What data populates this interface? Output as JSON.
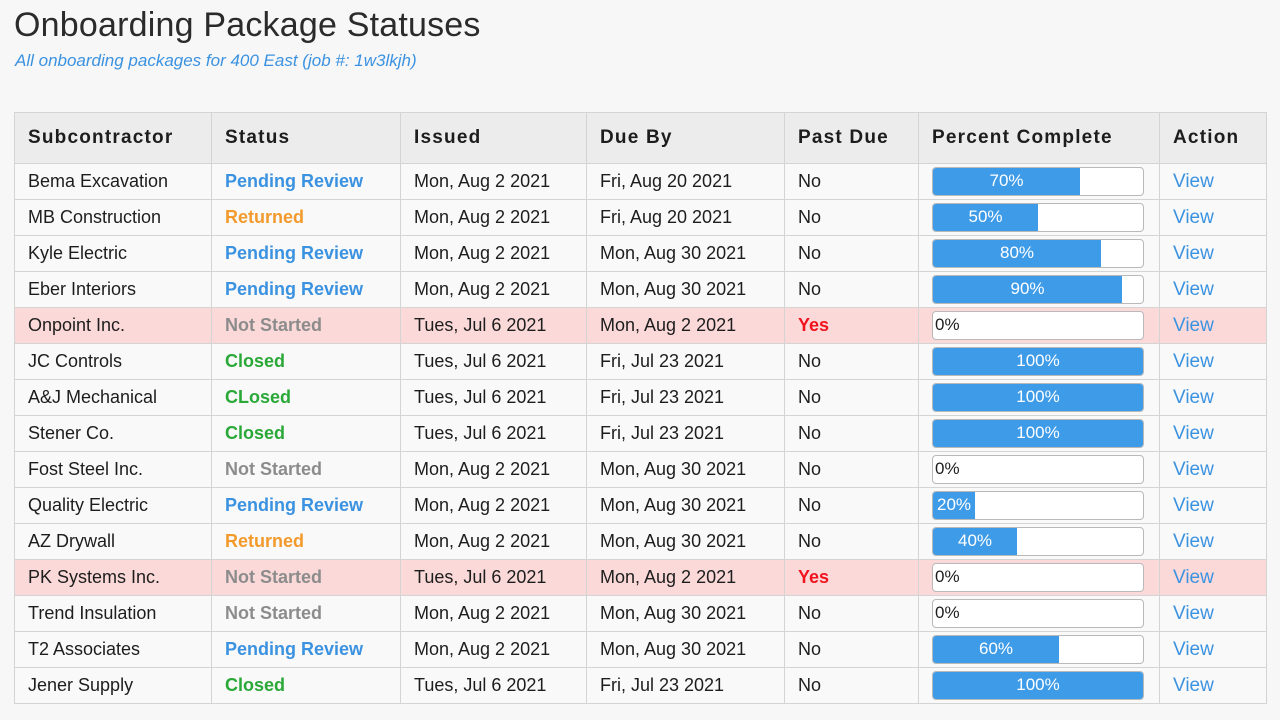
{
  "page": {
    "title": "Onboarding Package Statuses",
    "subtitle": "All onboarding packages for 400 East (job #: 1w3lkjh)"
  },
  "colors": {
    "pending": "#3b92e0",
    "returned": "#f39a2c",
    "not_started": "#8c8c8c",
    "closed": "#2aa838",
    "past_due_yes": "#f0141e",
    "past_due_row_bg": "#fcd9d9",
    "progress_fill": "#3e9be8"
  },
  "table": {
    "headers": [
      "Subcontractor",
      "Status",
      "Issued",
      "Due By",
      "Past Due",
      "Percent Complete",
      "Action"
    ],
    "rows": [
      {
        "subcontractor": "Bema Excavation",
        "status": "Pending Review",
        "status_kind": "pending",
        "issued": "Mon, Aug 2 2021",
        "due_by": "Fri, Aug 20 2021",
        "past_due": "No",
        "percent": 70,
        "percent_label": "70%",
        "action": "View"
      },
      {
        "subcontractor": "MB Construction",
        "status": "Returned",
        "status_kind": "returned",
        "issued": "Mon, Aug 2 2021",
        "due_by": "Fri, Aug 20 2021",
        "past_due": "No",
        "percent": 50,
        "percent_label": "50%",
        "action": "View"
      },
      {
        "subcontractor": "Kyle Electric",
        "status": "Pending Review",
        "status_kind": "pending",
        "issued": "Mon, Aug 2 2021",
        "due_by": "Mon, Aug 30 2021",
        "past_due": "No",
        "percent": 80,
        "percent_label": "80%",
        "action": "View"
      },
      {
        "subcontractor": "Eber Interiors",
        "status": "Pending Review",
        "status_kind": "pending",
        "issued": "Mon, Aug 2 2021",
        "due_by": "Mon, Aug 30 2021",
        "past_due": "No",
        "percent": 90,
        "percent_label": "90%",
        "action": "View"
      },
      {
        "subcontractor": "Onpoint Inc.",
        "status": "Not Started",
        "status_kind": "notstarted",
        "issued": "Tues, Jul 6 2021",
        "due_by": "Mon, Aug 2 2021",
        "past_due": "Yes",
        "percent": 0,
        "percent_label": "0%",
        "action": "View"
      },
      {
        "subcontractor": "JC Controls",
        "status": "Closed",
        "status_kind": "closed",
        "issued": "Tues, Jul 6 2021",
        "due_by": "Fri, Jul 23 2021",
        "past_due": "No",
        "percent": 100,
        "percent_label": "100%",
        "action": "View"
      },
      {
        "subcontractor": "A&J Mechanical",
        "status": "CLosed",
        "status_kind": "closed",
        "issued": "Tues, Jul 6 2021",
        "due_by": "Fri, Jul 23 2021",
        "past_due": "No",
        "percent": 100,
        "percent_label": "100%",
        "action": "View"
      },
      {
        "subcontractor": "Stener Co.",
        "status": "Closed",
        "status_kind": "closed",
        "issued": "Tues, Jul 6 2021",
        "due_by": "Fri, Jul 23 2021",
        "past_due": "No",
        "percent": 100,
        "percent_label": "100%",
        "action": "View"
      },
      {
        "subcontractor": "Fost Steel Inc.",
        "status": "Not Started",
        "status_kind": "notstarted",
        "issued": "Mon, Aug 2 2021",
        "due_by": "Mon, Aug 30 2021",
        "past_due": "No",
        "percent": 0,
        "percent_label": "0%",
        "action": "View"
      },
      {
        "subcontractor": "Quality Electric",
        "status": "Pending Review",
        "status_kind": "pending",
        "issued": "Mon, Aug 2 2021",
        "due_by": "Mon, Aug 30 2021",
        "past_due": "No",
        "percent": 20,
        "percent_label": "20%",
        "action": "View"
      },
      {
        "subcontractor": "AZ Drywall",
        "status": "Returned",
        "status_kind": "returned",
        "issued": "Mon, Aug 2 2021",
        "due_by": "Mon, Aug 30 2021",
        "past_due": "No",
        "percent": 40,
        "percent_label": "40%",
        "action": "View"
      },
      {
        "subcontractor": "PK Systems Inc.",
        "status": "Not Started",
        "status_kind": "notstarted",
        "issued": "Tues, Jul 6 2021",
        "due_by": "Mon, Aug 2 2021",
        "past_due": "Yes",
        "percent": 0,
        "percent_label": "0%",
        "action": "View"
      },
      {
        "subcontractor": "Trend Insulation",
        "status": "Not Started",
        "status_kind": "notstarted",
        "issued": "Mon, Aug 2 2021",
        "due_by": "Mon, Aug 30 2021",
        "past_due": "No",
        "percent": 0,
        "percent_label": "0%",
        "action": "View"
      },
      {
        "subcontractor": "T2 Associates",
        "status": "Pending Review",
        "status_kind": "pending",
        "issued": "Mon, Aug 2 2021",
        "due_by": "Mon, Aug 30 2021",
        "past_due": "No",
        "percent": 60,
        "percent_label": "60%",
        "action": "View"
      },
      {
        "subcontractor": "Jener Supply",
        "status": "Closed",
        "status_kind": "closed",
        "issued": "Tues, Jul 6 2021",
        "due_by": "Fri, Jul 23 2021",
        "past_due": "No",
        "percent": 100,
        "percent_label": "100%",
        "action": "View"
      }
    ]
  }
}
